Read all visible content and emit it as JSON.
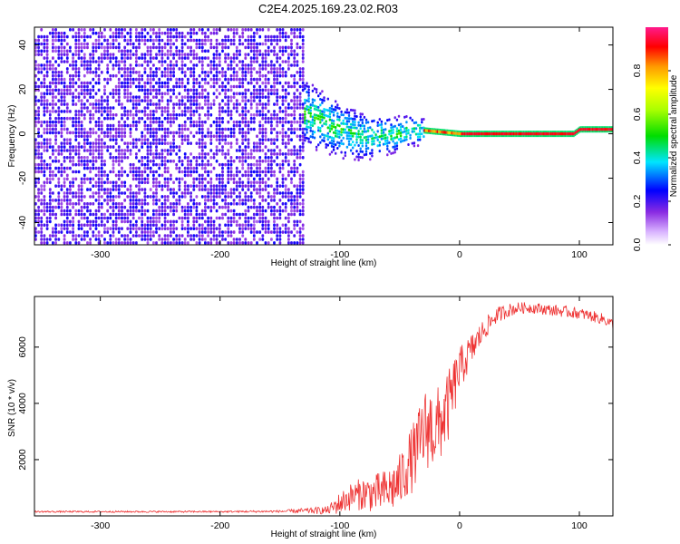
{
  "chart_data": [
    {
      "type": "heatmap",
      "title": "C2E4.2025.169.23.02.R03",
      "xlabel": "Height of straight line (km)",
      "ylabel": "Frequency (Hz)",
      "xlim": [
        -355,
        128
      ],
      "ylim": [
        -50,
        48
      ],
      "x_ticks": [
        -300,
        -200,
        -100,
        0,
        100
      ],
      "y_ticks": [
        -40,
        -20,
        0,
        20,
        40
      ],
      "x_tick_labels": [
        "-300",
        "-200",
        "-100",
        "0",
        "100"
      ],
      "y_tick_labels": [
        "-40",
        "-20",
        "0",
        "20",
        "40"
      ],
      "colorbar": {
        "label": "Normalized spectral amplitude",
        "range": [
          0,
          1
        ],
        "ticks": [
          0.0,
          0.2,
          0.4,
          0.6,
          0.8
        ],
        "tick_labels": [
          "0.0",
          "0.2",
          "0.4",
          "0.6",
          "0.8"
        ]
      },
      "regions": [
        {
          "description": "broadband noise",
          "x_range": [
            -355,
            -130
          ],
          "freq_range": [
            -50,
            48
          ],
          "amplitude": 0.18
        },
        {
          "description": "carrier band",
          "x_range": [
            -130,
            -30
          ],
          "freq_range": [
            -15,
            15
          ],
          "amplitude": 0.3
        },
        {
          "description": "carrier line",
          "x_range": [
            -30,
            128
          ],
          "freq": 0.5,
          "amplitude": 0.95
        }
      ],
      "carrier_track": [
        {
          "x": -130,
          "f": 10
        },
        {
          "x": -100,
          "f": 2
        },
        {
          "x": -80,
          "f": -1
        },
        {
          "x": -60,
          "f": 0
        },
        {
          "x": -40,
          "f": 2
        },
        {
          "x": -20,
          "f": 1
        },
        {
          "x": 0,
          "f": 0
        },
        {
          "x": 50,
          "f": 0
        },
        {
          "x": 95,
          "f": 0
        },
        {
          "x": 100,
          "f": 2
        },
        {
          "x": 128,
          "f": 2
        }
      ]
    },
    {
      "type": "line",
      "xlabel": "Height of straight line (km)",
      "ylabel": "SNR (10 * v/v)",
      "xlim": [
        -355,
        128
      ],
      "ylim": [
        0,
        7800
      ],
      "x_ticks": [
        -300,
        -200,
        -100,
        0,
        100
      ],
      "y_ticks": [
        2000,
        4000,
        6000
      ],
      "x_tick_labels": [
        "-300",
        "-200",
        "-100",
        "0",
        "100"
      ],
      "y_tick_labels": [
        "2000",
        "4000",
        "6000"
      ],
      "color": "#ee3333",
      "series": [
        {
          "x": [
            -355,
            -300,
            -250,
            -200,
            -150,
            -110,
            -100,
            -90,
            -80,
            -70,
            -60,
            -50,
            -45,
            -40,
            -35,
            -30,
            -25,
            -20,
            -15,
            -10,
            -5,
            0,
            10,
            20,
            30,
            40,
            50,
            60,
            70,
            80,
            90,
            100,
            110,
            120,
            128
          ],
          "y": [
            150,
            150,
            150,
            150,
            160,
            200,
            450,
            700,
            800,
            800,
            900,
            1200,
            1700,
            2000,
            2400,
            3000,
            3200,
            3000,
            3400,
            3800,
            4500,
            5200,
            5900,
            6600,
            7100,
            7300,
            7400,
            7400,
            7350,
            7300,
            7250,
            7200,
            7100,
            7000,
            6800
          ],
          "noise": [
            30,
            30,
            30,
            30,
            40,
            150,
            400,
            500,
            600,
            700,
            800,
            1000,
            1100,
            1200,
            1300,
            1500,
            1500,
            1500,
            1400,
            1300,
            1100,
            800,
            600,
            400,
            300,
            250,
            200,
            200,
            200,
            200,
            200,
            200,
            200,
            200,
            200
          ]
        }
      ]
    }
  ]
}
